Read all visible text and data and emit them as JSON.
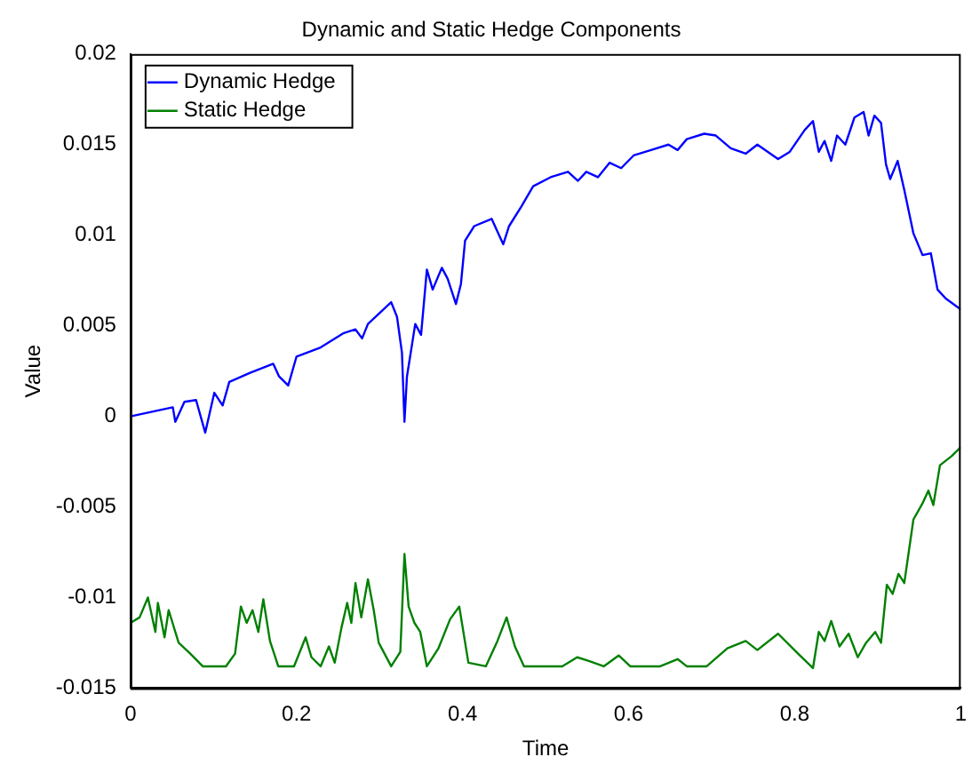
{
  "chart_data": {
    "type": "line",
    "title": "Dynamic and Static Hedge Components",
    "xlabel": "Time",
    "ylabel": "Value",
    "xlim": [
      0,
      1
    ],
    "xticks": [
      0,
      0.2,
      0.4,
      0.6,
      0.8,
      1
    ],
    "ylim": [
      -0.015,
      0.02
    ],
    "yticks": [
      -0.015,
      -0.01,
      -0.005,
      0,
      0.005,
      0.01,
      0.015,
      0.02
    ],
    "grid": false,
    "legend": "top left",
    "marker": "none",
    "line_style": "solid",
    "series": [
      {
        "name": "Dynamic Hedge",
        "color": "#0000ff",
        "x": [
          0,
          0.051,
          0.054,
          0.065,
          0.079,
          0.09,
          0.101,
          0.111,
          0.119,
          0.144,
          0.172,
          0.179,
          0.19,
          0.2,
          0.229,
          0.257,
          0.271,
          0.279,
          0.286,
          0.314,
          0.321,
          0.327,
          0.33,
          0.333,
          0.343,
          0.35,
          0.357,
          0.364,
          0.375,
          0.382,
          0.392,
          0.398,
          0.403,
          0.414,
          0.435,
          0.449,
          0.456,
          0.471,
          0.485,
          0.506,
          0.527,
          0.539,
          0.549,
          0.563,
          0.577,
          0.591,
          0.606,
          0.627,
          0.648,
          0.659,
          0.67,
          0.691,
          0.705,
          0.723,
          0.741,
          0.755,
          0.78,
          0.794,
          0.812,
          0.822,
          0.829,
          0.836,
          0.844,
          0.851,
          0.861,
          0.872,
          0.883,
          0.889,
          0.896,
          0.904,
          0.91,
          0.915,
          0.924,
          0.932,
          0.943,
          0.954,
          0.964,
          0.972,
          0.982,
          1
        ],
        "values": [
          0,
          0.0005,
          -0.0003,
          0.0008,
          0.0009,
          -0.0009,
          0.0013,
          0.0006,
          0.0019,
          0.0024,
          0.0029,
          0.0022,
          0.0017,
          0.0033,
          0.0038,
          0.0046,
          0.0048,
          0.0043,
          0.0051,
          0.0063,
          0.0055,
          0.0035,
          -0.0003,
          0.0022,
          0.0051,
          0.0045,
          0.0081,
          0.007,
          0.0082,
          0.0076,
          0.0062,
          0.0073,
          0.0097,
          0.0105,
          0.0109,
          0.0095,
          0.0105,
          0.0116,
          0.0127,
          0.0132,
          0.0135,
          0.013,
          0.0135,
          0.0132,
          0.014,
          0.0137,
          0.0144,
          0.0147,
          0.015,
          0.0147,
          0.0153,
          0.0156,
          0.0155,
          0.0148,
          0.0145,
          0.015,
          0.0142,
          0.0146,
          0.0158,
          0.0163,
          0.0146,
          0.0152,
          0.0141,
          0.0155,
          0.015,
          0.0165,
          0.0168,
          0.0155,
          0.0166,
          0.0162,
          0.0139,
          0.0131,
          0.0141,
          0.0125,
          0.0101,
          0.0089,
          0.009,
          0.007,
          0.0065,
          0.0059
        ]
      },
      {
        "name": "Static Hedge",
        "color": "#008000",
        "x": [
          0,
          0.011,
          0.021,
          0.03,
          0.033,
          0.041,
          0.046,
          0.058,
          0.072,
          0.087,
          0.115,
          0.126,
          0.133,
          0.14,
          0.147,
          0.154,
          0.16,
          0.168,
          0.178,
          0.197,
          0.211,
          0.218,
          0.229,
          0.239,
          0.246,
          0.254,
          0.261,
          0.266,
          0.271,
          0.278,
          0.286,
          0.293,
          0.299,
          0.314,
          0.325,
          0.33,
          0.335,
          0.342,
          0.349,
          0.357,
          0.371,
          0.385,
          0.396,
          0.407,
          0.428,
          0.442,
          0.453,
          0.463,
          0.474,
          0.495,
          0.52,
          0.538,
          0.552,
          0.57,
          0.588,
          0.602,
          0.638,
          0.659,
          0.67,
          0.694,
          0.719,
          0.741,
          0.755,
          0.78,
          0.804,
          0.822,
          0.829,
          0.836,
          0.844,
          0.854,
          0.865,
          0.876,
          0.886,
          0.897,
          0.904,
          0.911,
          0.918,
          0.925,
          0.932,
          0.943,
          0.954,
          0.961,
          0.967,
          0.975,
          0.989,
          1
        ],
        "values": [
          -0.0114,
          -0.0111,
          -0.01,
          -0.0119,
          -0.0103,
          -0.0122,
          -0.0107,
          -0.0125,
          -0.0131,
          -0.0138,
          -0.0138,
          -0.0131,
          -0.0105,
          -0.0114,
          -0.0107,
          -0.0119,
          -0.0101,
          -0.0124,
          -0.0138,
          -0.0138,
          -0.0122,
          -0.0133,
          -0.0138,
          -0.0127,
          -0.0136,
          -0.0117,
          -0.0103,
          -0.0114,
          -0.0092,
          -0.0111,
          -0.009,
          -0.0107,
          -0.0125,
          -0.0138,
          -0.013,
          -0.0076,
          -0.0105,
          -0.0114,
          -0.0119,
          -0.0138,
          -0.0128,
          -0.0112,
          -0.0105,
          -0.0136,
          -0.0138,
          -0.0124,
          -0.0111,
          -0.0127,
          -0.0138,
          -0.0138,
          -0.0138,
          -0.0133,
          -0.0135,
          -0.0138,
          -0.0132,
          -0.0138,
          -0.0138,
          -0.0134,
          -0.0138,
          -0.0138,
          -0.0128,
          -0.0124,
          -0.0129,
          -0.012,
          -0.0131,
          -0.0139,
          -0.0119,
          -0.0124,
          -0.0113,
          -0.0127,
          -0.012,
          -0.0133,
          -0.0125,
          -0.0119,
          -0.0125,
          -0.0093,
          -0.0098,
          -0.0087,
          -0.0092,
          -0.0057,
          -0.0048,
          -0.0041,
          -0.0049,
          -0.0027,
          -0.0022,
          -0.0017
        ]
      }
    ]
  }
}
